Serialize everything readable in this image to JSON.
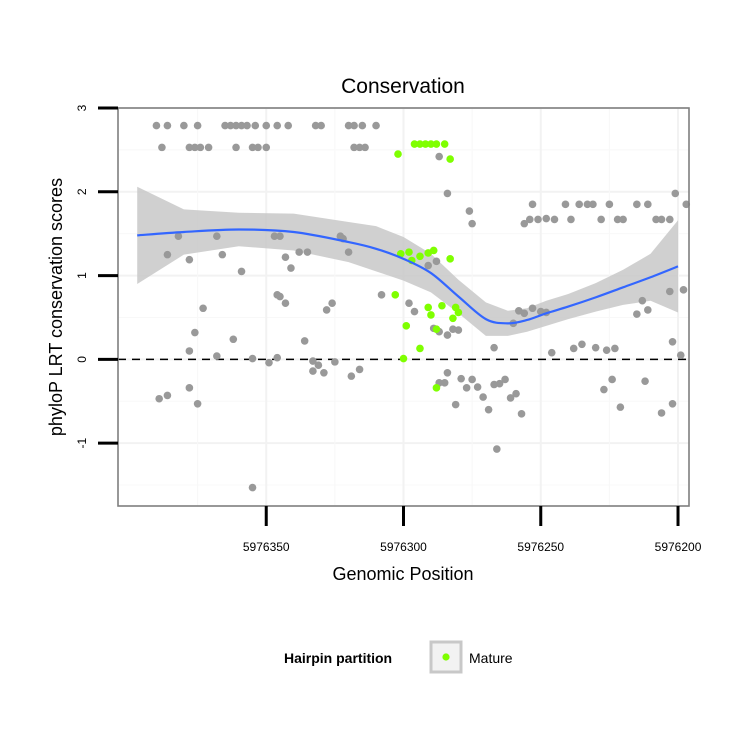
{
  "chart_data": {
    "type": "scatter",
    "title": "Conservation",
    "xlabel": "Genomic Position",
    "ylabel": "phyloP LRT conservation scores",
    "x_reversed": true,
    "xlim": [
      5976404,
      5976196
    ],
    "ylim": [
      -1.75,
      3
    ],
    "x_ticks": [
      5976350,
      5976300,
      5976250,
      5976200
    ],
    "x_tick_labels": [
      "5976350",
      "5976300",
      "5976250",
      "5976200"
    ],
    "y_ticks": [
      -1,
      0,
      1,
      2,
      3
    ],
    "y_tick_labels": [
      "-1",
      "0",
      "1",
      "2",
      "3"
    ],
    "grid": true,
    "reference_line": {
      "y": 0,
      "style": "dashed",
      "color": "#000000"
    },
    "colors": {
      "other": "#999999",
      "mature": "#7fff00",
      "smooth": "#3366ff",
      "band": "#c8c8c8"
    },
    "legend": {
      "title": "Hairpin partition",
      "position": "bottom",
      "entries": [
        {
          "label": "Mature",
          "color": "#7fff00"
        }
      ]
    },
    "series": [
      {
        "group": "other",
        "points": [
          [
            5976390,
            2.79
          ],
          [
            5976386,
            2.79
          ],
          [
            5976380,
            2.79
          ],
          [
            5976375,
            2.79
          ],
          [
            5976365,
            2.79
          ],
          [
            5976363,
            2.79
          ],
          [
            5976361,
            2.79
          ],
          [
            5976359,
            2.79
          ],
          [
            5976357,
            2.79
          ],
          [
            5976354,
            2.79
          ],
          [
            5976350,
            2.79
          ],
          [
            5976346,
            2.79
          ],
          [
            5976342,
            2.79
          ],
          [
            5976332,
            2.79
          ],
          [
            5976330,
            2.79
          ],
          [
            5976320,
            2.79
          ],
          [
            5976318,
            2.79
          ],
          [
            5976315,
            2.79
          ],
          [
            5976310,
            2.79
          ],
          [
            5976388,
            2.53
          ],
          [
            5976378,
            2.53
          ],
          [
            5976376,
            2.53
          ],
          [
            5976374,
            2.53
          ],
          [
            5976371,
            2.53
          ],
          [
            5976361,
            2.53
          ],
          [
            5976355,
            2.53
          ],
          [
            5976353,
            2.53
          ],
          [
            5976350,
            2.53
          ],
          [
            5976318,
            2.53
          ],
          [
            5976316,
            2.53
          ],
          [
            5976314,
            2.53
          ],
          [
            5976287,
            2.42
          ],
          [
            5976284,
            1.98
          ],
          [
            5976386,
            1.25
          ],
          [
            5976382,
            1.47
          ],
          [
            5976378,
            1.19
          ],
          [
            5976368,
            1.47
          ],
          [
            5976366,
            1.25
          ],
          [
            5976359,
            1.05
          ],
          [
            5976347,
            1.47
          ],
          [
            5976345,
            1.47
          ],
          [
            5976343,
            1.22
          ],
          [
            5976341,
            1.09
          ],
          [
            5976338,
            1.28
          ],
          [
            5976335,
            1.28
          ],
          [
            5976323,
            1.47
          ],
          [
            5976322,
            1.44
          ],
          [
            5976320,
            1.28
          ],
          [
            5976308,
            0.77
          ],
          [
            5976291,
            1.12
          ],
          [
            5976288,
            1.17
          ],
          [
            5976276,
            1.77
          ],
          [
            5976275,
            1.62
          ],
          [
            5976373,
            0.61
          ],
          [
            5976346,
            0.77
          ],
          [
            5976345,
            0.75
          ],
          [
            5976343,
            0.67
          ],
          [
            5976336,
            0.22
          ],
          [
            5976328,
            0.59
          ],
          [
            5976326,
            0.67
          ],
          [
            5976296,
            0.57
          ],
          [
            5976298,
            0.67
          ],
          [
            5976376,
            0.32
          ],
          [
            5976362,
            0.24
          ],
          [
            5976378,
            0.1
          ],
          [
            5976368,
            0.04
          ],
          [
            5976355,
            0.01
          ],
          [
            5976349,
            -0.04
          ],
          [
            5976346,
            0.02
          ],
          [
            5976333,
            -0.02
          ],
          [
            5976331,
            -0.07
          ],
          [
            5976329,
            -0.16
          ],
          [
            5976333,
            -0.14
          ],
          [
            5976325,
            -0.03
          ],
          [
            5976319,
            -0.2
          ],
          [
            5976289,
            0.37
          ],
          [
            5976287,
            0.33
          ],
          [
            5976284,
            0.29
          ],
          [
            5976280,
            0.35
          ],
          [
            5976282,
            0.36
          ],
          [
            5976260,
            0.43
          ],
          [
            5976258,
            0.58
          ],
          [
            5976256,
            0.55
          ],
          [
            5976253,
            0.61
          ],
          [
            5976250,
            0.57
          ],
          [
            5976248,
            0.56
          ],
          [
            5976230,
            0.14
          ],
          [
            5976226,
            0.11
          ],
          [
            5976223,
            0.13
          ],
          [
            5976215,
            0.54
          ],
          [
            5976213,
            0.7
          ],
          [
            5976211,
            0.59
          ],
          [
            5976203,
            0.81
          ],
          [
            5976202,
            0.21
          ],
          [
            5976198,
            0.83
          ],
          [
            5976256,
            1.62
          ],
          [
            5976254,
            1.67
          ],
          [
            5976253,
            1.85
          ],
          [
            5976251,
            1.67
          ],
          [
            5976248,
            1.68
          ],
          [
            5976245,
            1.67
          ],
          [
            5976241,
            1.85
          ],
          [
            5976239,
            1.67
          ],
          [
            5976236,
            1.85
          ],
          [
            5976233,
            1.85
          ],
          [
            5976231,
            1.85
          ],
          [
            5976228,
            1.67
          ],
          [
            5976225,
            1.85
          ],
          [
            5976222,
            1.67
          ],
          [
            5976220,
            1.67
          ],
          [
            5976215,
            1.85
          ],
          [
            5976211,
            1.85
          ],
          [
            5976208,
            1.67
          ],
          [
            5976206,
            1.67
          ],
          [
            5976203,
            1.67
          ],
          [
            5976201,
            1.98
          ],
          [
            5976197,
            1.85
          ],
          [
            5976389,
            -0.47
          ],
          [
            5976386,
            -0.43
          ],
          [
            5976378,
            -0.34
          ],
          [
            5976375,
            -0.53
          ],
          [
            5976316,
            -0.12
          ],
          [
            5976287,
            -0.28
          ],
          [
            5976285,
            -0.28
          ],
          [
            5976284,
            -0.16
          ],
          [
            5976281,
            -0.54
          ],
          [
            5976279,
            -0.23
          ],
          [
            5976277,
            -0.34
          ],
          [
            5976275,
            -0.24
          ],
          [
            5976273,
            -0.33
          ],
          [
            5976271,
            -0.45
          ],
          [
            5976269,
            -0.6
          ],
          [
            5976267,
            -0.3
          ],
          [
            5976265,
            -0.29
          ],
          [
            5976263,
            -0.24
          ],
          [
            5976261,
            -0.46
          ],
          [
            5976259,
            -0.41
          ],
          [
            5976257,
            -0.65
          ],
          [
            5976266,
            -1.07
          ],
          [
            5976355,
            -1.53
          ],
          [
            5976227,
            -0.36
          ],
          [
            5976224,
            -0.24
          ],
          [
            5976221,
            -0.57
          ],
          [
            5976206,
            -0.64
          ],
          [
            5976202,
            -0.53
          ],
          [
            5976212,
            -0.26
          ],
          [
            5976199,
            0.05
          ],
          [
            5976267,
            0.14
          ],
          [
            5976246,
            0.08
          ],
          [
            5976238,
            0.13
          ],
          [
            5976235,
            0.18
          ]
        ]
      },
      {
        "group": "mature",
        "name": "Mature",
        "points": [
          [
            5976302,
            2.45
          ],
          [
            5976296,
            2.57
          ],
          [
            5976294,
            2.57
          ],
          [
            5976292,
            2.57
          ],
          [
            5976290,
            2.57
          ],
          [
            5976288,
            2.57
          ],
          [
            5976285,
            2.57
          ],
          [
            5976283,
            2.39
          ],
          [
            5976301,
            1.26
          ],
          [
            5976298,
            1.28
          ],
          [
            5976297,
            1.18
          ],
          [
            5976294,
            1.23
          ],
          [
            5976291,
            1.27
          ],
          [
            5976289,
            1.3
          ],
          [
            5976283,
            1.2
          ],
          [
            5976281,
            0.62
          ],
          [
            5976303,
            0.77
          ],
          [
            5976299,
            0.4
          ],
          [
            5976291,
            0.62
          ],
          [
            5976290,
            0.53
          ],
          [
            5976288,
            0.36
          ],
          [
            5976286,
            0.64
          ],
          [
            5976282,
            0.49
          ],
          [
            5976280,
            0.56
          ],
          [
            5976300,
            0.01
          ],
          [
            5976294,
            0.13
          ],
          [
            5976288,
            -0.34
          ]
        ]
      }
    ],
    "smooth": {
      "x": [
        5976397,
        5976380,
        5976360,
        5976340,
        5976320,
        5976310,
        5976300,
        5976290,
        5976280,
        5976270,
        5976262,
        5976255,
        5976248,
        5976240,
        5976230,
        5976220,
        5976210,
        5976200
      ],
      "y": [
        1.48,
        1.52,
        1.55,
        1.52,
        1.4,
        1.32,
        1.2,
        1.03,
        0.75,
        0.48,
        0.43,
        0.47,
        0.55,
        0.63,
        0.74,
        0.86,
        0.98,
        1.11
      ],
      "lower": [
        0.9,
        1.25,
        1.35,
        1.3,
        1.16,
        1.05,
        0.94,
        0.8,
        0.55,
        0.28,
        0.28,
        0.33,
        0.4,
        0.48,
        0.57,
        0.65,
        0.7,
        0.56
      ],
      "upper": [
        2.06,
        1.79,
        1.75,
        1.74,
        1.64,
        1.59,
        1.46,
        1.26,
        0.95,
        0.68,
        0.58,
        0.61,
        0.7,
        0.78,
        0.91,
        1.07,
        1.26,
        1.66
      ]
    }
  }
}
